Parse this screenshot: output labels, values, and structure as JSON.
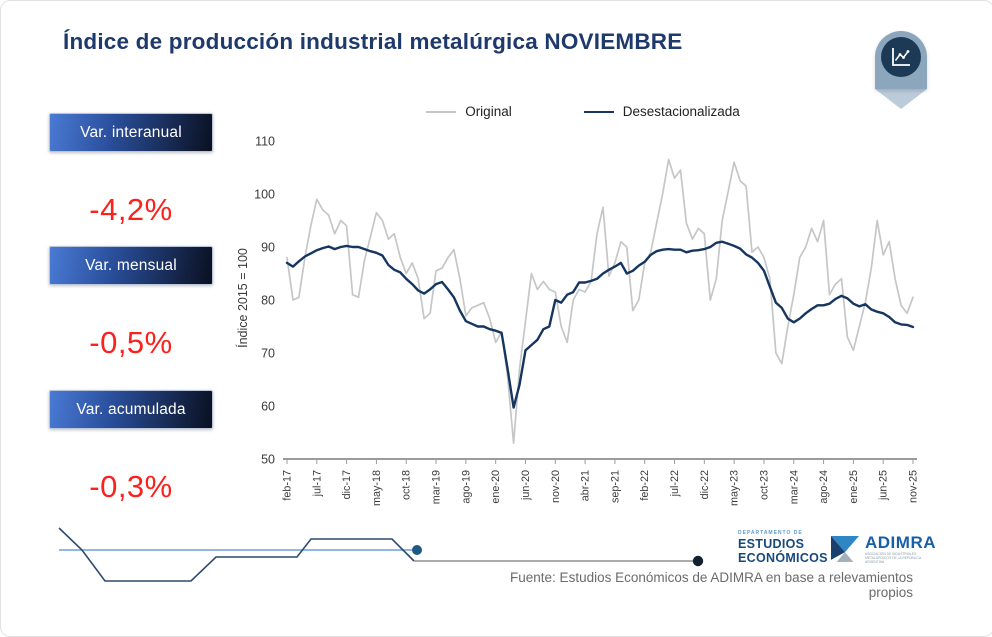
{
  "slide": {
    "title": "Índice de producción industrial metalúrgica NOVIEMBRE"
  },
  "stats": [
    {
      "label": "Var. interanual",
      "value": "-4,2%"
    },
    {
      "label": "Var. mensual",
      "value": "-0,5%"
    },
    {
      "label": "Var. acumulada",
      "value": "-0,3%"
    }
  ],
  "colors": {
    "title_navy": "#1e3a6d",
    "stat_value_red": "#fb211d",
    "original_line": "#c5c6c8",
    "desest_line": "#16365f",
    "axis_gray": "#9b9b9b",
    "footer_blue_line": "#6f9fd8",
    "footer_zigzag": "#2c4a6e",
    "footer_gray_line": "#8f8f8f"
  },
  "chart_data": {
    "type": "line",
    "title": "",
    "xlabel": "",
    "ylabel": "Índice 2015 = 100",
    "ylim": [
      50,
      110
    ],
    "yticks": [
      50,
      60,
      70,
      80,
      90,
      100,
      110
    ],
    "xtick_every": 5,
    "grid": false,
    "legend_position": "top",
    "x": [
      "feb-17",
      "mar-17",
      "abr-17",
      "may-17",
      "jun-17",
      "jul-17",
      "ago-17",
      "sep-17",
      "oct-17",
      "nov-17",
      "dic-17",
      "ene-18",
      "feb-18",
      "mar-18",
      "abr-18",
      "may-18",
      "jun-18",
      "jul-18",
      "ago-18",
      "sep-18",
      "oct-18",
      "nov-18",
      "dic-18",
      "ene-19",
      "feb-19",
      "mar-19",
      "abr-19",
      "may-19",
      "jun-19",
      "jul-19",
      "ago-19",
      "sep-19",
      "oct-19",
      "nov-19",
      "dic-19",
      "ene-20",
      "feb-20",
      "mar-20",
      "abr-20",
      "may-20",
      "jun-20",
      "jul-20",
      "ago-20",
      "sep-20",
      "oct-20",
      "nov-20",
      "dic-20",
      "ene-21",
      "feb-21",
      "mar-21",
      "abr-21",
      "may-21",
      "jun-21",
      "jul-21",
      "ago-21",
      "sep-21",
      "oct-21",
      "nov-21",
      "dic-21",
      "ene-22",
      "feb-22",
      "mar-22",
      "abr-22",
      "may-22",
      "jun-22",
      "jul-22",
      "ago-22",
      "sep-22",
      "oct-22",
      "nov-22",
      "dic-22",
      "ene-23",
      "feb-23",
      "mar-23",
      "abr-23",
      "may-23",
      "jun-23",
      "jul-23",
      "ago-23",
      "sep-23",
      "oct-23",
      "nov-23",
      "dic-23",
      "ene-24",
      "feb-24",
      "mar-24",
      "abr-24",
      "may-24",
      "jun-24",
      "jul-24",
      "ago-24",
      "sep-24",
      "oct-24",
      "nov-24",
      "dic-24",
      "ene-25",
      "feb-25",
      "mar-25",
      "abr-25",
      "may-25",
      "jun-25",
      "jul-25",
      "ago-25",
      "sep-25",
      "oct-25",
      "nov-25"
    ],
    "series": [
      {
        "name": "Original",
        "color": "#c5c6c8",
        "values": [
          88,
          80,
          80.5,
          88,
          94,
          99,
          97,
          96,
          92.5,
          95,
          94,
          81,
          80.5,
          87.5,
          92,
          96.5,
          95,
          91.5,
          92.5,
          88,
          85,
          87,
          84,
          76.5,
          77.5,
          85.5,
          86,
          88,
          89.5,
          84,
          77,
          78.5,
          79,
          79.5,
          76.5,
          72,
          74,
          65.5,
          53,
          67,
          76,
          85,
          82,
          83.5,
          82,
          81.5,
          75,
          72,
          80,
          82,
          81.5,
          83.5,
          92.5,
          97.5,
          84.5,
          87,
          91,
          90,
          78,
          80,
          87,
          89,
          94.5,
          100,
          106.5,
          103,
          104.5,
          94.5,
          91.5,
          93.5,
          92.5,
          80,
          84,
          95,
          100.5,
          106,
          102.5,
          101.5,
          89,
          90,
          88,
          84,
          70,
          68,
          75,
          81,
          88,
          90,
          93.5,
          91,
          95,
          81,
          83,
          84,
          73,
          70.5,
          75,
          79.5,
          86,
          95,
          88.5,
          91,
          84,
          79,
          77.5,
          80.5
        ]
      },
      {
        "name": "Desestacionalizada",
        "color": "#16365f",
        "values": [
          87,
          86.3,
          87.3,
          88.2,
          88.8,
          89.4,
          89.8,
          90.1,
          89.6,
          90,
          90.2,
          90,
          90,
          89.6,
          89.2,
          88.9,
          88.4,
          86.6,
          85.7,
          85.2,
          84,
          83,
          81.8,
          81.2,
          82,
          83,
          83.4,
          82,
          80.5,
          78,
          76,
          75.5,
          75,
          75,
          74.5,
          74.2,
          73.8,
          67,
          59.7,
          64,
          70.5,
          71.5,
          72.5,
          74.5,
          75,
          80,
          79.5,
          81,
          81.5,
          83.3,
          83.3,
          83.6,
          84,
          85,
          85.7,
          86.3,
          87,
          85,
          85.5,
          86.5,
          87.2,
          88.5,
          89.2,
          89.5,
          89.6,
          89.5,
          89.5,
          89,
          89.3,
          89.4,
          89.6,
          90,
          90.8,
          91,
          90.6,
          90.2,
          89.7,
          88.6,
          88,
          87,
          85.5,
          82.5,
          79.5,
          78.5,
          76.5,
          75.8,
          76.5,
          77.5,
          78.3,
          79,
          79,
          79.3,
          80.2,
          80.8,
          80.3,
          79.3,
          78.8,
          79.2,
          78.2,
          77.8,
          77.5,
          76.8,
          75.8,
          75.4,
          75.3,
          74.9
        ]
      }
    ]
  },
  "footer": {
    "fuente": "Fuente: Estudios Económicos de ADIMRA en base a relevamientos propios",
    "dept_small": "DEPARTAMENTO DE",
    "dept_line1": "ESTUDIOS",
    "dept_line2": "ECONÓMICOS",
    "adimra_name": "ADIMRA",
    "adimra_sub": "ASOCIACIÓN DE INDUSTRIALES METALÚRGICOS DE LA REPÚBLICA ARGENTINA"
  }
}
